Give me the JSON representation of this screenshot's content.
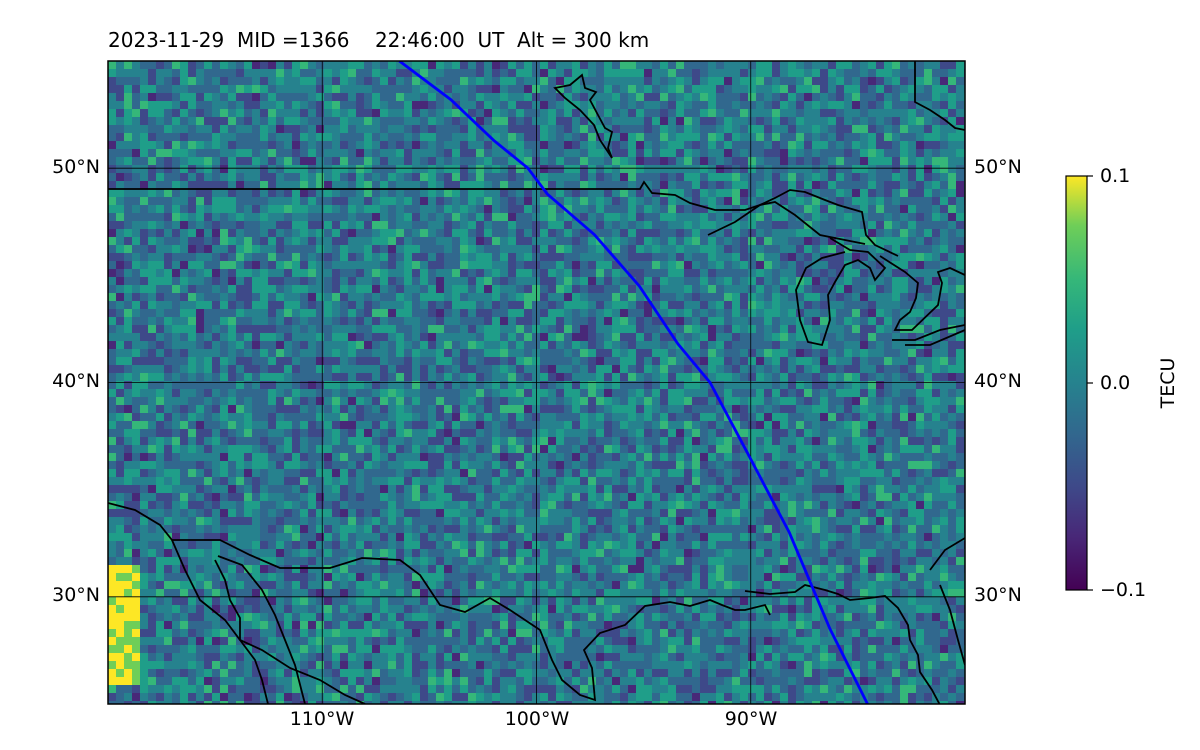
{
  "title": "2023-11-29  MID =1366    22:46:00  UT  Alt = 300 km",
  "map": {
    "lon_range": [
      -120,
      -80
    ],
    "lat_range": [
      25,
      55
    ],
    "lat_labels": [
      "50°N",
      "40°N",
      "30°N"
    ],
    "lon_labels": [
      "110°W",
      "100°W",
      "90°W"
    ],
    "gridlines": true,
    "overlay_line_color": "#0000ff",
    "overlay_line": [
      [
        -106.4,
        55
      ],
      [
        -104,
        53.2
      ],
      [
        -102,
        51.3
      ],
      [
        -100.4,
        50
      ],
      [
        -99.5,
        48.8
      ],
      [
        -97.3,
        46.9
      ],
      [
        -95.2,
        44.5
      ],
      [
        -93.4,
        41.8
      ],
      [
        -91.9,
        40
      ],
      [
        -90.2,
        36.8
      ],
      [
        -88.2,
        33
      ],
      [
        -86.3,
        28.5
      ],
      [
        -84.5,
        24.9
      ]
    ],
    "colormap": "viridis",
    "data_description_field": "TEC anomaly"
  },
  "colorbar": {
    "label": "TECU",
    "ticks": [
      "0.1",
      "0.0",
      "−0.1"
    ],
    "vmin": -0.1,
    "vmax": 0.1
  }
}
